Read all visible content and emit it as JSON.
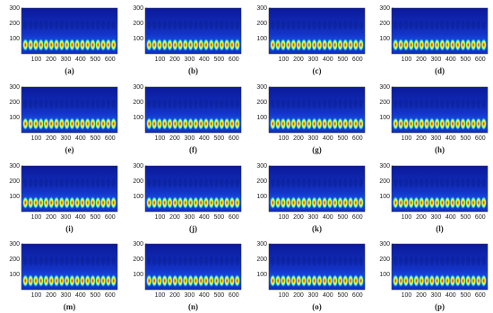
{
  "figure": {
    "axes": {
      "xlim": [
        0,
        650
      ],
      "ylim": [
        0,
        300
      ],
      "xticks": [
        100,
        200,
        300,
        400,
        500,
        600
      ],
      "yticks": [
        100,
        200,
        300
      ]
    },
    "panels": [
      {
        "label": "(a)"
      },
      {
        "label": "(b)"
      },
      {
        "label": "(c)"
      },
      {
        "label": "(d)"
      },
      {
        "label": "(e)"
      },
      {
        "label": "(f)"
      },
      {
        "label": "(g)"
      },
      {
        "label": "(h)"
      },
      {
        "label": "(i)"
      },
      {
        "label": "(j)"
      },
      {
        "label": "(k)"
      },
      {
        "label": "(l)"
      },
      {
        "label": "(m)"
      },
      {
        "label": "(n)"
      },
      {
        "label": "(o)"
      },
      {
        "label": "(p)"
      }
    ]
  }
}
